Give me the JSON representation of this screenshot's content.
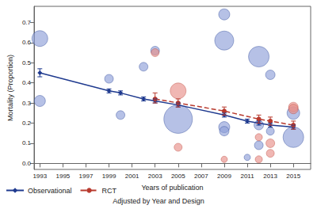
{
  "chart_data": {
    "type": "bubble",
    "x_label": "Years of publication",
    "y_label": "Mortality (Proportion)",
    "subtitle": "Adjusted by Year and Design",
    "xlim": [
      1992.5,
      2016.5
    ],
    "xticks": [
      1993,
      1995,
      1997,
      1999,
      2001,
      2003,
      2005,
      2007,
      2009,
      2011,
      2013,
      2015
    ],
    "ylim": [
      -0.03,
      0.78
    ],
    "yticks": [
      {
        "value": 0,
        "label": "0.0"
      },
      0.1,
      0.2,
      0.3,
      0.4,
      0.5,
      0.6,
      0.7
    ],
    "grid": false,
    "legend": "bottom-left",
    "series": [
      {
        "name": "Observational",
        "type": "line",
        "color": "#1f3a8f",
        "marker": "diamond",
        "line_style": "solid",
        "x": [
          1993,
          1999,
          2000,
          2002,
          2003,
          2005,
          2009,
          2011,
          2012,
          2013,
          2015
        ],
        "values": [
          0.45,
          0.36,
          0.35,
          0.32,
          0.31,
          0.29,
          0.24,
          0.21,
          0.2,
          0.19,
          0.18
        ],
        "error_low": [
          0.43,
          0.35,
          0.34,
          0.31,
          0.3,
          0.28,
          0.23,
          0.2,
          0.19,
          0.18,
          0.17
        ],
        "error_high": [
          0.47,
          0.37,
          0.36,
          0.33,
          0.32,
          0.3,
          0.25,
          0.22,
          0.21,
          0.2,
          0.19
        ],
        "bubbles": {
          "color": "#8fa0d8",
          "x": [
            1993,
            1993,
            1999,
            2000,
            2002,
            2003,
            2005,
            2009,
            2009,
            2009,
            2009,
            2011,
            2012,
            2012,
            2012,
            2013,
            2013,
            2015,
            2015
          ],
          "values": [
            0.62,
            0.31,
            0.42,
            0.24,
            0.48,
            0.56,
            0.22,
            0.74,
            0.61,
            0.18,
            0.16,
            0.03,
            0.53,
            0.19,
            0.09,
            0.44,
            0.16,
            0.25,
            0.13
          ],
          "size": [
            400,
            196,
            121,
            121,
            121,
            121,
            1296,
            196,
            576,
            196,
            144,
            64,
            676,
            144,
            121,
            144,
            100,
            256,
            676
          ]
        }
      },
      {
        "name": "RCT",
        "type": "line",
        "color": "#b83a2e",
        "marker": "circle",
        "line_style": "dashed",
        "x": [
          2003,
          2005,
          2009,
          2012,
          2013,
          2015
        ],
        "values": [
          0.32,
          0.3,
          0.26,
          0.22,
          0.21,
          0.19
        ],
        "error_low": [
          0.3,
          0.28,
          0.24,
          0.2,
          0.19,
          0.17
        ],
        "error_high": [
          0.35,
          0.32,
          0.28,
          0.24,
          0.23,
          0.21
        ],
        "bubbles": {
          "color": "#e8908a",
          "x": [
            2003,
            2005,
            2005,
            2009,
            2012,
            2012,
            2013,
            2013,
            2015,
            2015
          ],
          "values": [
            0.55,
            0.36,
            0.08,
            0.02,
            0.02,
            0.13,
            0.05,
            0.1,
            0.28,
            0.27
          ],
          "size": [
            100,
            400,
            100,
            64,
            81,
            81,
            100,
            121,
            144,
            144
          ]
        }
      }
    ]
  }
}
